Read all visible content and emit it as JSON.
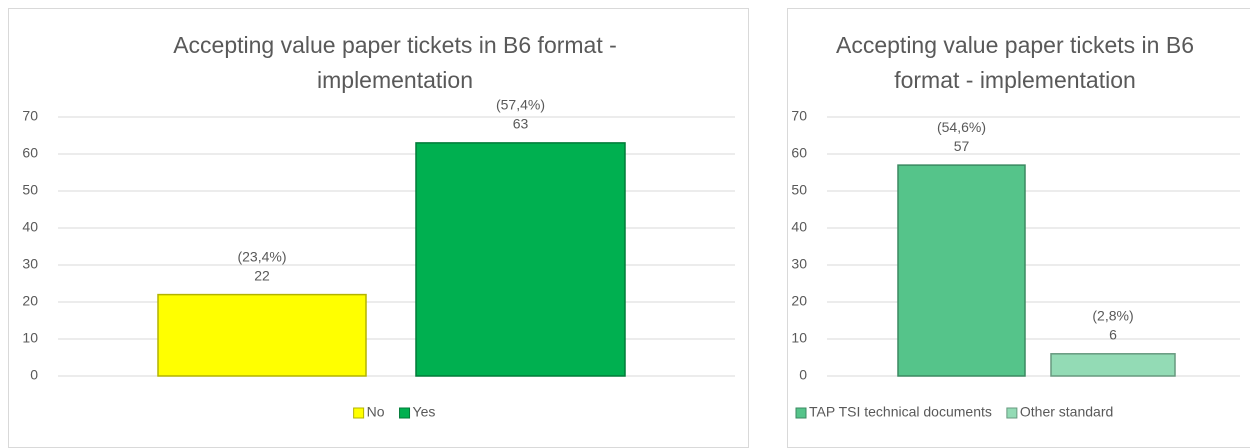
{
  "chart_data": [
    {
      "type": "bar",
      "title": "Accepting value paper tickets in B6 format - implementation",
      "series": [
        {
          "name": "No",
          "color": "#ffff00",
          "values": [
            22
          ],
          "percent_label": "(23,4%)"
        },
        {
          "name": "Yes",
          "color": "#00b050",
          "values": [
            63
          ],
          "percent_label": "(57,4%)"
        }
      ],
      "ylim": [
        0,
        70
      ],
      "yticks": [
        0,
        10,
        20,
        30,
        40,
        50,
        60,
        70
      ],
      "grid": true,
      "legend": "bottom"
    },
    {
      "type": "bar",
      "title": "Accepting value paper tickets in B6 format - implementation",
      "series": [
        {
          "name": "TAP TSI technical documents",
          "color": "#55c48a",
          "values": [
            57
          ],
          "percent_label": "(54,6%)"
        },
        {
          "name": "Other standard",
          "color": "#93dbb5",
          "values": [
            6
          ],
          "percent_label": "(2,8%)"
        }
      ],
      "ylim": [
        0,
        70
      ],
      "yticks": [
        0,
        10,
        20,
        30,
        40,
        50,
        60,
        70
      ],
      "grid": true,
      "legend": "bottom-left"
    }
  ]
}
